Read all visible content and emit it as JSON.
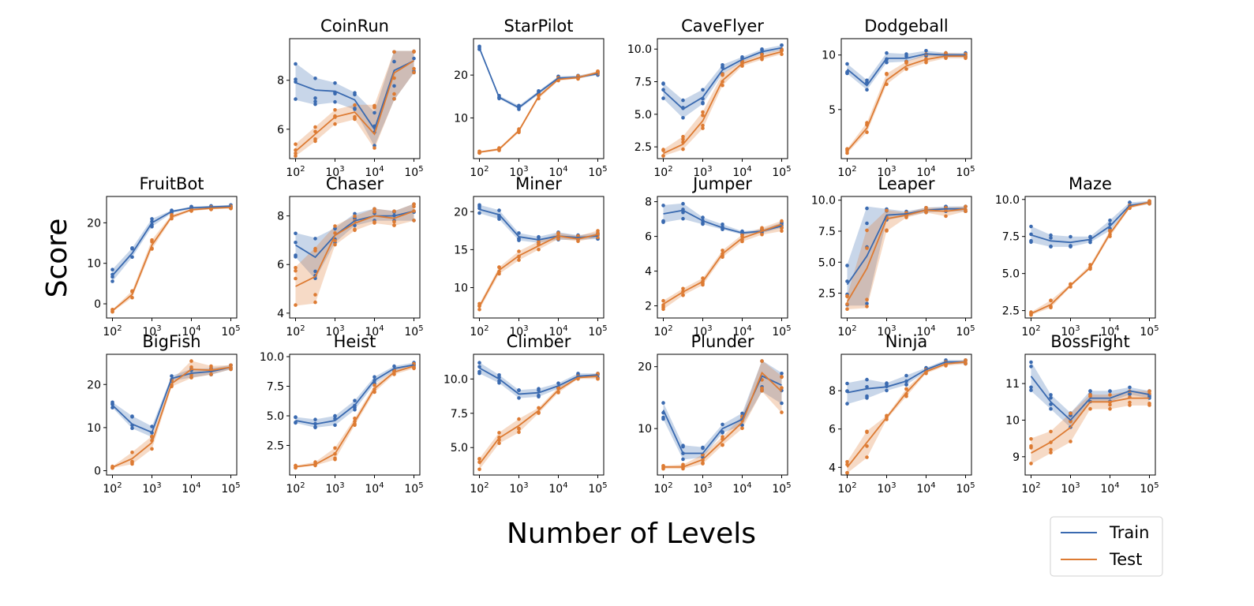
{
  "figure": {
    "ylabel": "Score",
    "xlabel": "Number of Levels",
    "legend": {
      "placement": "bottom-right"
    }
  },
  "colors": {
    "train": "#3a6ab0",
    "test": "#dd7b33"
  },
  "chart_data": {
    "type": "line",
    "x": [
      100,
      316,
      1000,
      3162,
      10000,
      31623,
      100000
    ],
    "xscale": "log",
    "xticks": [
      "10^2",
      "10^3",
      "10^4",
      "10^5"
    ],
    "series_names": [
      "Train",
      "Test"
    ],
    "panels": [
      {
        "title": "CoinRun",
        "ylim": [
          4.8,
          9.7
        ],
        "yticks": [
          6,
          8
        ],
        "ytick_labels": [
          "6",
          "8"
        ],
        "train": [
          7.9,
          7.6,
          7.55,
          7.2,
          6.0,
          8.4,
          8.8
        ],
        "train_lo": [
          7.2,
          7.0,
          7.1,
          6.8,
          5.3,
          7.2,
          8.3
        ],
        "train_hi": [
          8.7,
          8.1,
          7.9,
          7.5,
          6.7,
          9.2,
          9.2
        ],
        "test": [
          5.1,
          5.8,
          6.5,
          6.7,
          5.8,
          8.3,
          8.8
        ],
        "test_lo": [
          4.9,
          5.5,
          6.2,
          6.4,
          5.2,
          7.2,
          8.3
        ],
        "test_hi": [
          5.4,
          6.1,
          6.8,
          7.0,
          7.0,
          9.2,
          9.2
        ]
      },
      {
        "title": "StarPilot",
        "ylim": [
          0.5,
          28.5
        ],
        "yticks": [
          10,
          20
        ],
        "ytick_labels": [
          "10",
          "20"
        ],
        "train": [
          26.3,
          14.8,
          12.4,
          15.9,
          19.3,
          19.5,
          20.3
        ],
        "train_lo": [
          26.0,
          14.5,
          12.0,
          15.5,
          19.0,
          19.2,
          20.0
        ],
        "train_hi": [
          26.7,
          15.2,
          12.9,
          16.3,
          19.7,
          19.9,
          20.7
        ],
        "test": [
          2.0,
          2.7,
          7.0,
          15.0,
          19.0,
          19.4,
          20.6
        ],
        "test_lo": [
          1.8,
          2.4,
          6.6,
          14.5,
          18.7,
          19.1,
          20.3
        ],
        "test_hi": [
          2.2,
          3.0,
          7.4,
          15.4,
          19.4,
          19.8,
          20.9
        ]
      },
      {
        "title": "CaveFlyer",
        "ylim": [
          1.6,
          10.8
        ],
        "yticks": [
          2.5,
          5.0,
          7.5,
          10.0
        ],
        "ytick_labels": [
          "2.5",
          "5.0",
          "7.5",
          "10.0"
        ],
        "train": [
          6.8,
          5.4,
          6.3,
          8.4,
          9.2,
          9.8,
          10.1
        ],
        "train_lo": [
          6.2,
          4.7,
          5.8,
          8.1,
          9.0,
          9.6,
          9.9
        ],
        "train_hi": [
          7.4,
          6.1,
          6.9,
          8.8,
          9.4,
          10.0,
          10.3
        ],
        "test": [
          2.0,
          2.7,
          4.5,
          7.6,
          8.9,
          9.4,
          9.8
        ],
        "test_lo": [
          1.8,
          2.3,
          3.9,
          7.2,
          8.7,
          9.2,
          9.6
        ],
        "test_hi": [
          2.3,
          3.3,
          5.2,
          8.1,
          9.1,
          9.6,
          10.0
        ]
      },
      {
        "title": "Dodgeball",
        "ylim": [
          0.5,
          11.5
        ],
        "yticks": [
          5,
          10
        ],
        "ytick_labels": [
          "5",
          "10"
        ],
        "train": [
          8.7,
          7.2,
          9.7,
          9.7,
          10.1,
          10.0,
          10.0
        ],
        "train_lo": [
          8.3,
          6.8,
          9.3,
          9.4,
          9.9,
          9.8,
          9.8
        ],
        "train_hi": [
          9.2,
          7.7,
          10.2,
          10.1,
          10.4,
          10.2,
          10.2
        ],
        "test": [
          1.2,
          3.3,
          7.7,
          9.0,
          9.6,
          9.9,
          9.9
        ],
        "test_lo": [
          1.0,
          2.9,
          7.3,
          8.7,
          9.3,
          9.7,
          9.7
        ],
        "test_hi": [
          1.4,
          3.8,
          8.3,
          9.4,
          10.1,
          10.2,
          10.1
        ]
      },
      {
        "title": "FruitBot",
        "ylim": [
          -3.5,
          26.5
        ],
        "yticks": [
          0,
          10,
          20
        ],
        "ytick_labels": [
          "0",
          "10",
          "20"
        ],
        "train": [
          7.0,
          12.5,
          20.0,
          22.8,
          23.7,
          23.9,
          24.1
        ],
        "train_lo": [
          5.5,
          11.5,
          19.0,
          22.4,
          23.4,
          23.6,
          23.8
        ],
        "train_hi": [
          8.5,
          13.8,
          21.0,
          23.1,
          24.0,
          24.2,
          24.4
        ],
        "test": [
          -1.7,
          2.3,
          14.5,
          21.5,
          23.2,
          23.6,
          23.8
        ],
        "test_lo": [
          -2.0,
          1.5,
          13.5,
          21.0,
          22.9,
          23.3,
          23.5
        ],
        "test_hi": [
          -1.4,
          3.2,
          15.8,
          22.0,
          23.5,
          23.9,
          24.1
        ]
      },
      {
        "title": "Chaser",
        "ylim": [
          3.8,
          8.8
        ],
        "yticks": [
          4,
          6,
          8
        ],
        "ytick_labels": [
          "4",
          "6",
          "8"
        ],
        "train": [
          6.8,
          6.3,
          7.2,
          7.8,
          8.0,
          8.0,
          8.2
        ],
        "train_lo": [
          6.3,
          5.4,
          6.9,
          7.6,
          7.8,
          7.8,
          7.8
        ],
        "train_hi": [
          7.3,
          7.1,
          7.5,
          8.1,
          8.3,
          8.2,
          8.5
        ],
        "test": [
          5.1,
          5.5,
          7.2,
          7.7,
          8.0,
          7.9,
          8.2
        ],
        "test_lo": [
          4.3,
          4.4,
          6.8,
          7.4,
          7.7,
          7.6,
          7.8
        ],
        "test_hi": [
          5.9,
          6.7,
          7.6,
          8.0,
          8.3,
          8.2,
          8.5
        ]
      },
      {
        "title": "Miner",
        "ylim": [
          6.0,
          22.0
        ],
        "yticks": [
          10,
          15,
          20
        ],
        "ytick_labels": [
          "10",
          "15",
          "20"
        ],
        "train": [
          20.3,
          19.6,
          16.7,
          16.3,
          16.8,
          16.6,
          16.8
        ],
        "train_lo": [
          19.8,
          19.0,
          16.2,
          15.9,
          16.3,
          16.3,
          16.4
        ],
        "train_hi": [
          20.9,
          20.2,
          17.2,
          16.7,
          17.3,
          16.9,
          17.2
        ],
        "test": [
          7.5,
          12.3,
          14.2,
          15.5,
          16.8,
          16.4,
          17.0
        ],
        "test_lo": [
          7.1,
          11.8,
          13.6,
          15.0,
          16.4,
          16.1,
          16.6
        ],
        "test_hi": [
          7.9,
          12.7,
          14.8,
          16.1,
          17.2,
          16.8,
          17.5
        ]
      },
      {
        "title": "Jumper",
        "ylim": [
          1.3,
          8.3
        ],
        "yticks": [
          2,
          4,
          6,
          8
        ],
        "ytick_labels": [
          "2",
          "4",
          "6",
          "8"
        ],
        "train": [
          7.3,
          7.5,
          6.9,
          6.5,
          6.2,
          6.3,
          6.6
        ],
        "train_lo": [
          6.8,
          7.0,
          6.7,
          6.4,
          6.1,
          6.2,
          6.5
        ],
        "train_hi": [
          7.8,
          7.9,
          7.1,
          6.7,
          6.3,
          6.4,
          6.8
        ],
        "test": [
          2.1,
          2.8,
          3.4,
          5.0,
          5.9,
          6.3,
          6.7
        ],
        "test_lo": [
          1.8,
          2.6,
          3.2,
          4.8,
          5.7,
          6.1,
          6.3
        ],
        "test_hi": [
          2.3,
          3.0,
          3.6,
          5.2,
          6.1,
          6.5,
          6.9
        ]
      },
      {
        "title": "Leaper",
        "ylim": [
          0.5,
          10.3
        ],
        "yticks": [
          2.5,
          5.0,
          7.5,
          10.0
        ],
        "ytick_labels": [
          "2.5",
          "5.0",
          "7.5",
          "10.0"
        ],
        "train": [
          3.2,
          5.5,
          8.8,
          8.9,
          9.2,
          9.3,
          9.3
        ],
        "train_lo": [
          1.5,
          1.5,
          8.4,
          8.7,
          9.0,
          9.1,
          9.1
        ],
        "train_hi": [
          4.8,
          9.5,
          9.3,
          9.1,
          9.4,
          9.5,
          9.5
        ],
        "test": [
          1.8,
          4.5,
          8.5,
          8.8,
          9.2,
          9.1,
          9.3
        ],
        "test_lo": [
          1.2,
          1.3,
          7.5,
          8.6,
          9.0,
          8.7,
          9.1
        ],
        "test_hi": [
          2.3,
          7.7,
          9.2,
          9.0,
          9.4,
          9.4,
          9.5
        ]
      },
      {
        "title": "Maze",
        "ylim": [
          2.0,
          10.2
        ],
        "yticks": [
          2.5,
          5.0,
          7.5,
          10.0
        ],
        "ytick_labels": [
          "2.5",
          "5.0",
          "7.5",
          "10.0"
        ],
        "train": [
          7.6,
          7.2,
          7.1,
          7.3,
          8.2,
          9.6,
          9.8
        ],
        "train_lo": [
          7.1,
          6.8,
          6.8,
          7.1,
          7.9,
          9.5,
          9.7
        ],
        "train_hi": [
          8.2,
          7.6,
          7.5,
          7.5,
          8.6,
          9.8,
          9.9
        ],
        "test": [
          2.3,
          2.9,
          4.2,
          5.4,
          7.7,
          9.5,
          9.8
        ],
        "test_lo": [
          2.2,
          2.7,
          4.1,
          5.3,
          7.5,
          9.4,
          9.7
        ],
        "test_hi": [
          2.4,
          3.2,
          4.3,
          5.6,
          7.9,
          9.6,
          9.9
        ]
      },
      {
        "title": "BigFish",
        "ylim": [
          -1.0,
          27.0
        ],
        "yticks": [
          0,
          10,
          20
        ],
        "ytick_labels": [
          "0",
          "10",
          "20"
        ],
        "train": [
          15.2,
          10.8,
          8.9,
          21.4,
          22.6,
          23.0,
          24.0
        ],
        "train_lo": [
          14.6,
          9.8,
          7.8,
          20.8,
          21.6,
          22.3,
          23.5
        ],
        "train_hi": [
          15.9,
          12.7,
          10.3,
          22.0,
          23.6,
          23.8,
          24.5
        ],
        "test": [
          0.8,
          2.8,
          6.5,
          20.2,
          23.5,
          23.3,
          24.0
        ],
        "test_lo": [
          0.6,
          1.5,
          5.0,
          19.5,
          21.5,
          22.3,
          23.5
        ],
        "test_hi": [
          1.0,
          4.3,
          8.0,
          21.0,
          25.5,
          24.3,
          24.5
        ]
      },
      {
        "title": "Heist",
        "ylim": [
          0.0,
          10.2
        ],
        "yticks": [
          2.5,
          5.0,
          7.5,
          10.0
        ],
        "ytick_labels": [
          "2.5",
          "5.0",
          "7.5",
          "10.0"
        ],
        "train": [
          4.6,
          4.3,
          4.6,
          5.9,
          8.0,
          9.0,
          9.3
        ],
        "train_lo": [
          4.4,
          4.0,
          4.2,
          5.5,
          7.7,
          8.8,
          9.2
        ],
        "train_hi": [
          4.9,
          4.7,
          5.0,
          6.3,
          8.3,
          9.2,
          9.5
        ],
        "test": [
          0.7,
          0.9,
          1.8,
          4.5,
          7.3,
          8.7,
          9.2
        ],
        "test_lo": [
          0.6,
          0.8,
          1.3,
          4.2,
          7.0,
          8.5,
          9.0
        ],
        "test_hi": [
          0.8,
          1.1,
          2.3,
          4.8,
          7.6,
          8.9,
          9.4
        ]
      },
      {
        "title": "Climber",
        "ylim": [
          3.0,
          11.8
        ],
        "yticks": [
          5.0,
          7.5,
          10.0
        ],
        "ytick_labels": [
          "5.0",
          "7.5",
          "10.0"
        ],
        "train": [
          10.8,
          10.0,
          8.9,
          9.0,
          9.5,
          10.2,
          10.3
        ],
        "train_lo": [
          10.4,
          9.7,
          8.6,
          8.7,
          9.3,
          10.1,
          10.1
        ],
        "train_hi": [
          11.2,
          10.3,
          9.2,
          9.3,
          9.7,
          10.4,
          10.4
        ],
        "test": [
          3.8,
          5.7,
          6.6,
          7.7,
          9.2,
          10.1,
          10.2
        ],
        "test_lo": [
          3.4,
          5.3,
          6.1,
          7.5,
          9.0,
          10.0,
          10.0
        ],
        "test_hi": [
          4.2,
          6.1,
          7.1,
          7.9,
          9.4,
          10.2,
          10.4
        ]
      },
      {
        "title": "Plunder",
        "ylim": [
          2.5,
          22.0
        ],
        "yticks": [
          10,
          20
        ],
        "ytick_labels": [
          "10",
          "20"
        ],
        "train": [
          13.0,
          6.0,
          6.0,
          10.0,
          11.5,
          18.5,
          17.0
        ],
        "train_lo": [
          11.5,
          5.0,
          5.3,
          9.3,
          10.5,
          16.0,
          14.0
        ],
        "train_hi": [
          14.2,
          7.3,
          7.0,
          10.7,
          12.5,
          21.0,
          19.0
        ],
        "test": [
          3.8,
          3.8,
          5.0,
          8.0,
          11.0,
          19.0,
          16.0
        ],
        "test_lo": [
          3.5,
          3.5,
          4.3,
          7.3,
          10.0,
          16.0,
          12.5
        ],
        "test_hi": [
          4.0,
          4.2,
          5.8,
          8.7,
          12.0,
          21.0,
          18.5
        ]
      },
      {
        "title": "Ninja",
        "ylim": [
          3.6,
          9.9
        ],
        "yticks": [
          4,
          6,
          8
        ],
        "ytick_labels": [
          "4",
          "6",
          "8"
        ],
        "train": [
          7.9,
          8.1,
          8.2,
          8.5,
          9.1,
          9.5,
          9.5
        ],
        "train_lo": [
          7.3,
          7.6,
          8.0,
          8.3,
          9.0,
          9.4,
          9.4
        ],
        "train_hi": [
          8.4,
          8.6,
          8.4,
          8.8,
          9.2,
          9.6,
          9.6
        ],
        "test": [
          4.0,
          5.3,
          6.6,
          7.9,
          9.0,
          9.4,
          9.5
        ],
        "test_lo": [
          3.7,
          4.5,
          6.5,
          7.7,
          8.9,
          9.3,
          9.4
        ],
        "test_hi": [
          4.3,
          5.9,
          6.7,
          8.1,
          9.1,
          9.5,
          9.6
        ]
      },
      {
        "title": "BossFight",
        "ylim": [
          8.5,
          11.8
        ],
        "yticks": [
          9,
          10,
          11
        ],
        "ytick_labels": [
          "9",
          "10",
          "11"
        ],
        "train": [
          11.2,
          10.5,
          10.0,
          10.6,
          10.6,
          10.8,
          10.7
        ],
        "train_lo": [
          10.8,
          10.3,
          9.8,
          10.5,
          10.5,
          10.7,
          10.6
        ],
        "train_hi": [
          11.6,
          10.7,
          10.2,
          10.8,
          10.8,
          10.9,
          10.8
        ],
        "test": [
          9.1,
          9.4,
          9.8,
          10.5,
          10.5,
          10.6,
          10.6
        ],
        "test_lo": [
          8.8,
          9.1,
          9.4,
          10.3,
          10.3,
          10.4,
          10.4
        ],
        "test_hi": [
          9.5,
          9.7,
          10.2,
          10.7,
          10.7,
          10.8,
          10.8
        ]
      }
    ]
  }
}
